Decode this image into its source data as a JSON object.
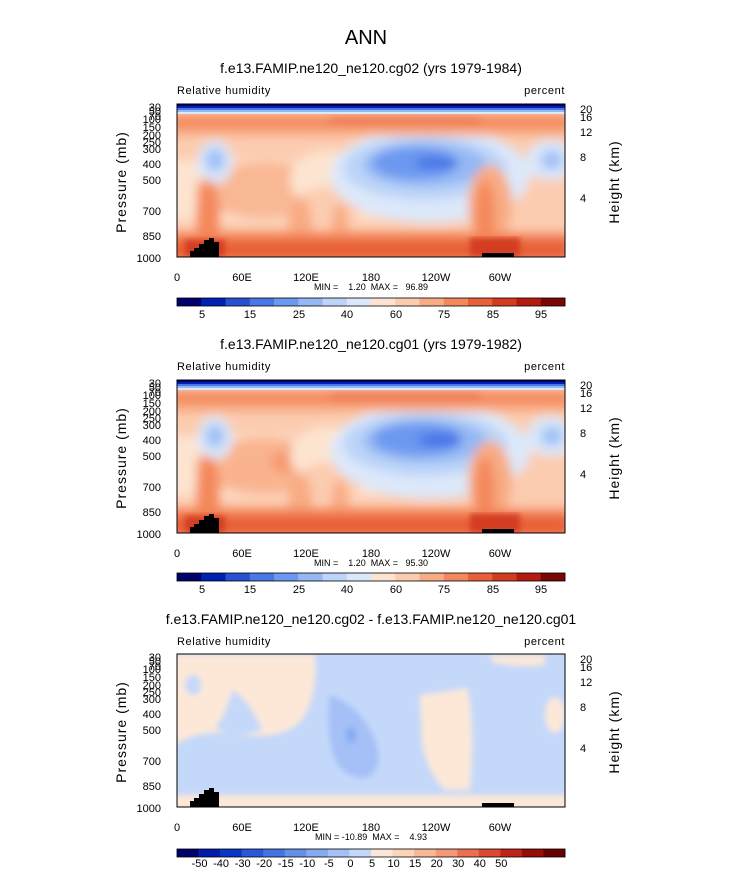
{
  "figure": {
    "title": "ANN"
  },
  "chart_data": [
    {
      "type": "heatmap",
      "title": "f.e13.FAMIP.ne120_ne120.cg02 (yrs 1979-1984)",
      "left_label": "Relative humidity",
      "right_label": "percent",
      "ylabel": "Pressure (mb)",
      "y2label": "Height (km)",
      "xticks": [
        "0",
        "60E",
        "120E",
        "180",
        "120W",
        "60W"
      ],
      "pressure_ticks": [
        "30",
        "50",
        "70",
        "100",
        "150",
        "200",
        "250",
        "300",
        "400",
        "500",
        "700",
        "850",
        "1000"
      ],
      "height_ticks": [
        "20",
        "16",
        "12",
        "8",
        "4"
      ],
      "stats_text": "MIN =    1.20  MAX =   96.89",
      "min": 1.2,
      "max": 96.89,
      "colorbar_labels": [
        "5",
        "15",
        "25",
        "40",
        "60",
        "75",
        "85",
        "95"
      ]
    },
    {
      "type": "heatmap",
      "title": "f.e13.FAMIP.ne120_ne120.cg01 (yrs 1979-1982)",
      "left_label": "Relative humidity",
      "right_label": "percent",
      "ylabel": "Pressure (mb)",
      "y2label": "Height (km)",
      "xticks": [
        "0",
        "60E",
        "120E",
        "180",
        "120W",
        "60W"
      ],
      "pressure_ticks": [
        "30",
        "50",
        "70",
        "100",
        "150",
        "200",
        "250",
        "300",
        "400",
        "500",
        "700",
        "850",
        "1000"
      ],
      "height_ticks": [
        "20",
        "16",
        "12",
        "8",
        "4"
      ],
      "stats_text": "MIN =    1.20  MAX =   95.30",
      "min": 1.2,
      "max": 95.3,
      "colorbar_labels": [
        "5",
        "15",
        "25",
        "40",
        "60",
        "75",
        "85",
        "95"
      ]
    },
    {
      "type": "heatmap",
      "title": "f.e13.FAMIP.ne120_ne120.cg02 - f.e13.FAMIP.ne120_ne120.cg01",
      "left_label": "Relative humidity",
      "right_label": "percent",
      "ylabel": "Pressure (mb)",
      "y2label": "Height (km)",
      "xticks": [
        "0",
        "60E",
        "120E",
        "180",
        "120W",
        "60W"
      ],
      "pressure_ticks": [
        "30",
        "50",
        "70",
        "100",
        "150",
        "200",
        "250",
        "300",
        "400",
        "500",
        "700",
        "850",
        "1000"
      ],
      "height_ticks": [
        "20",
        "16",
        "12",
        "8",
        "4"
      ],
      "stats_text": "MIN = -10.89  MAX =    4.93",
      "min": -10.89,
      "max": 4.93,
      "colorbar_labels": [
        "-50",
        "-40",
        "-30",
        "-20",
        "-15",
        "-10",
        "-5",
        "0",
        "5",
        "10",
        "15",
        "20",
        "30",
        "40",
        "50"
      ]
    }
  ],
  "colors": {
    "abs_scale": [
      "#00006c",
      "#0020b4",
      "#2850d0",
      "#4878e6",
      "#6c98f0",
      "#94b8f4",
      "#bcd4f8",
      "#dce8fa",
      "#fde4d0",
      "#fcccb0",
      "#f8ac84",
      "#f4885c",
      "#e86038",
      "#d43c20",
      "#b41c10",
      "#7a0606"
    ],
    "diff_scale": [
      "#00006c",
      "#001ca8",
      "#0836c6",
      "#2858d8",
      "#4474e4",
      "#6490ec",
      "#84aaf2",
      "#a4c0f6",
      "#c4d8fa",
      "#fde8d8",
      "#fcd4b8",
      "#f8b898",
      "#f49878",
      "#ec7050",
      "#dc4830",
      "#c02418",
      "#960c06",
      "#6a0000"
    ],
    "topography": "#000000"
  }
}
